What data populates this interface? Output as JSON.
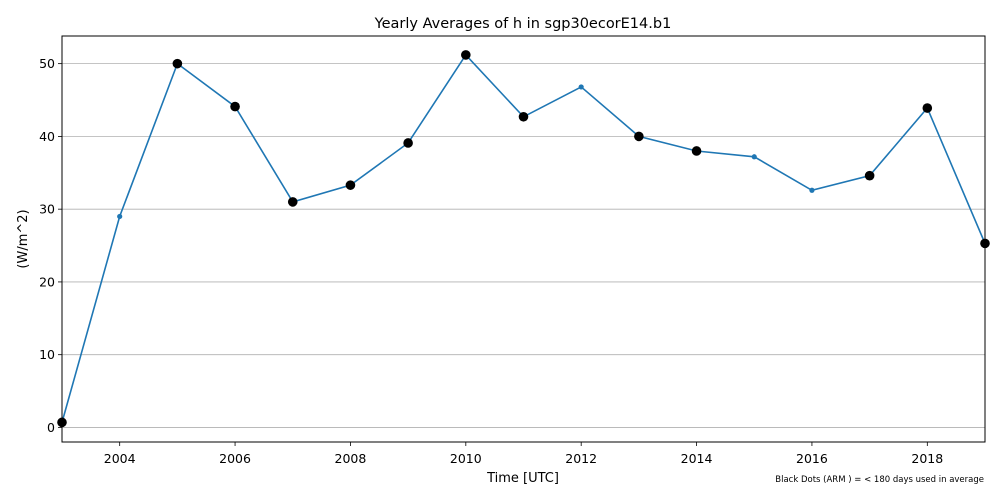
{
  "chart_data": {
    "type": "line",
    "title": "Yearly Averages of h in sgp30ecorE14.b1",
    "xlabel": "Time [UTC]",
    "ylabel": "(W/m^2)",
    "footnote": "Black Dots (ARM ) = < 180 days used in average",
    "xlim": [
      2003,
      2019
    ],
    "ylim": [
      -2,
      53.8
    ],
    "grid": "horizontal",
    "x_ticks": [
      2004,
      2006,
      2008,
      2010,
      2012,
      2014,
      2016,
      2018
    ],
    "x_tick_labels": [
      "2004",
      "2006",
      "2008",
      "2010",
      "2012",
      "2014",
      "2016",
      "2018"
    ],
    "y_ticks": [
      0,
      10,
      20,
      30,
      40,
      50
    ],
    "y_tick_labels": [
      "0",
      "10",
      "20",
      "30",
      "40",
      "50"
    ],
    "line_color": "#1f77b4",
    "marker_color": "#000000",
    "series": [
      {
        "name": "h",
        "x": [
          2003,
          2004,
          2005,
          2006,
          2007,
          2008,
          2009,
          2010,
          2011,
          2012,
          2013,
          2014,
          2015,
          2016,
          2017,
          2018,
          2019
        ],
        "values": [
          0.7,
          29.0,
          50.0,
          44.1,
          31.0,
          33.3,
          39.1,
          51.2,
          42.7,
          46.8,
          40.0,
          38.0,
          37.2,
          32.6,
          34.6,
          43.9,
          25.3
        ],
        "black_dot": [
          true,
          false,
          true,
          true,
          true,
          true,
          true,
          true,
          true,
          false,
          true,
          true,
          false,
          false,
          true,
          true,
          true
        ]
      }
    ]
  }
}
